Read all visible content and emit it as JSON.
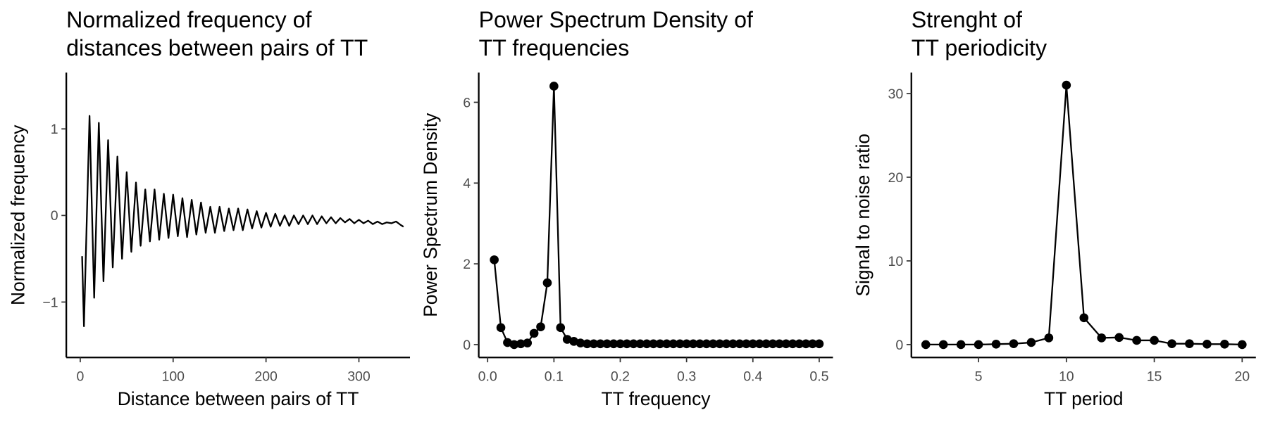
{
  "chart_data": [
    {
      "type": "line",
      "title": [
        "Normalized frequency of",
        "distances between pairs of TT"
      ],
      "x_label": "Distance between pairs of TT",
      "y_label": "Normalized frequency",
      "markers": false,
      "color": "#000000",
      "x": [
        2,
        4,
        10,
        15,
        20,
        25,
        30,
        35,
        40,
        45,
        50,
        55,
        60,
        65,
        70,
        75,
        80,
        85,
        90,
        95,
        100,
        105,
        110,
        115,
        120,
        125,
        130,
        135,
        140,
        145,
        150,
        155,
        160,
        165,
        170,
        175,
        180,
        185,
        190,
        195,
        200,
        205,
        210,
        215,
        220,
        225,
        230,
        235,
        240,
        245,
        250,
        255,
        260,
        265,
        270,
        275,
        280,
        285,
        290,
        295,
        300,
        305,
        310,
        315,
        320,
        325,
        330,
        335,
        340,
        345,
        348
      ],
      "values": [
        -0.47,
        -1.28,
        1.15,
        -0.95,
        1.07,
        -0.76,
        0.87,
        -0.6,
        0.68,
        -0.5,
        0.5,
        -0.42,
        0.38,
        -0.35,
        0.3,
        -0.3,
        0.3,
        -0.28,
        0.25,
        -0.26,
        0.24,
        -0.24,
        0.2,
        -0.25,
        0.18,
        -0.22,
        0.15,
        -0.2,
        0.1,
        -0.2,
        0.1,
        -0.18,
        0.08,
        -0.17,
        0.08,
        -0.17,
        0.07,
        -0.15,
        0.05,
        -0.14,
        0.03,
        -0.13,
        0.02,
        -0.12,
        0.0,
        -0.12,
        0.0,
        -0.1,
        0.0,
        -0.1,
        0.0,
        -0.1,
        -0.01,
        -0.09,
        -0.02,
        -0.09,
        -0.03,
        -0.08,
        -0.04,
        -0.09,
        -0.05,
        -0.09,
        -0.06,
        -0.1,
        -0.07,
        -0.1,
        -0.08,
        -0.09,
        -0.07,
        -0.11,
        -0.13
      ],
      "xlim": [
        -15,
        355
      ],
      "ylim": [
        -1.64,
        1.65
      ],
      "xticks": [
        0,
        100,
        200,
        300
      ],
      "yticks": [
        {
          "value": -1,
          "label": "−1"
        },
        0,
        1
      ]
    },
    {
      "type": "line",
      "title": [
        "Power Spectrum Density of",
        "TT frequencies"
      ],
      "x_label": "TT frequency",
      "y_label": "Power Spectrum Density",
      "markers": true,
      "color": "#000000",
      "x": [
        0.01,
        0.02,
        0.03,
        0.04,
        0.05,
        0.06,
        0.07,
        0.08,
        0.09,
        0.1,
        0.11,
        0.12,
        0.13,
        0.14,
        0.15,
        0.16,
        0.17,
        0.18,
        0.19,
        0.2,
        0.21,
        0.22,
        0.23,
        0.24,
        0.25,
        0.26,
        0.27,
        0.28,
        0.29,
        0.3,
        0.31,
        0.32,
        0.33,
        0.34,
        0.35,
        0.36,
        0.37,
        0.38,
        0.39,
        0.4,
        0.41,
        0.42,
        0.43,
        0.44,
        0.45,
        0.46,
        0.47,
        0.48,
        0.49,
        0.5
      ],
      "values": [
        2.1,
        0.42,
        0.05,
        0.0,
        0.02,
        0.04,
        0.28,
        0.44,
        1.53,
        6.4,
        0.42,
        0.13,
        0.08,
        0.04,
        0.02,
        0.02,
        0.02,
        0.02,
        0.02,
        0.02,
        0.02,
        0.02,
        0.02,
        0.02,
        0.02,
        0.02,
        0.02,
        0.02,
        0.02,
        0.02,
        0.02,
        0.02,
        0.02,
        0.02,
        0.02,
        0.02,
        0.02,
        0.02,
        0.02,
        0.02,
        0.02,
        0.02,
        0.02,
        0.02,
        0.02,
        0.02,
        0.02,
        0.02,
        0.02,
        0.02
      ],
      "xlim": [
        -0.0134,
        0.5207
      ],
      "ylim": [
        -0.318,
        6.735
      ],
      "xticks": [
        {
          "value": 0,
          "label": "0.0"
        },
        0.1,
        0.2,
        0.3,
        0.4,
        0.5
      ],
      "yticks": [
        0,
        2,
        4,
        6
      ]
    },
    {
      "type": "line",
      "title": [
        "Strenght of",
        "TT periodicity"
      ],
      "x_label": "TT period",
      "y_label": "Signal to noise ratio",
      "markers": true,
      "color": "#000000",
      "x": [
        2,
        3,
        4,
        5,
        6,
        7,
        8,
        9,
        10,
        11,
        12,
        13,
        14,
        15,
        16,
        17,
        18,
        19,
        20
      ],
      "values": [
        0.0,
        0.0,
        0.0,
        0.0,
        0.05,
        0.1,
        0.25,
        0.8,
        31,
        3.2,
        0.8,
        0.85,
        0.5,
        0.5,
        0.1,
        0.1,
        0.05,
        0.05,
        0.0
      ],
      "xlim": [
        1.18,
        20.78
      ],
      "ylim": [
        -1.54,
        32.5
      ],
      "xticks": [
        5,
        10,
        15,
        20
      ],
      "yticks": [
        0,
        10,
        20,
        30
      ]
    }
  ]
}
